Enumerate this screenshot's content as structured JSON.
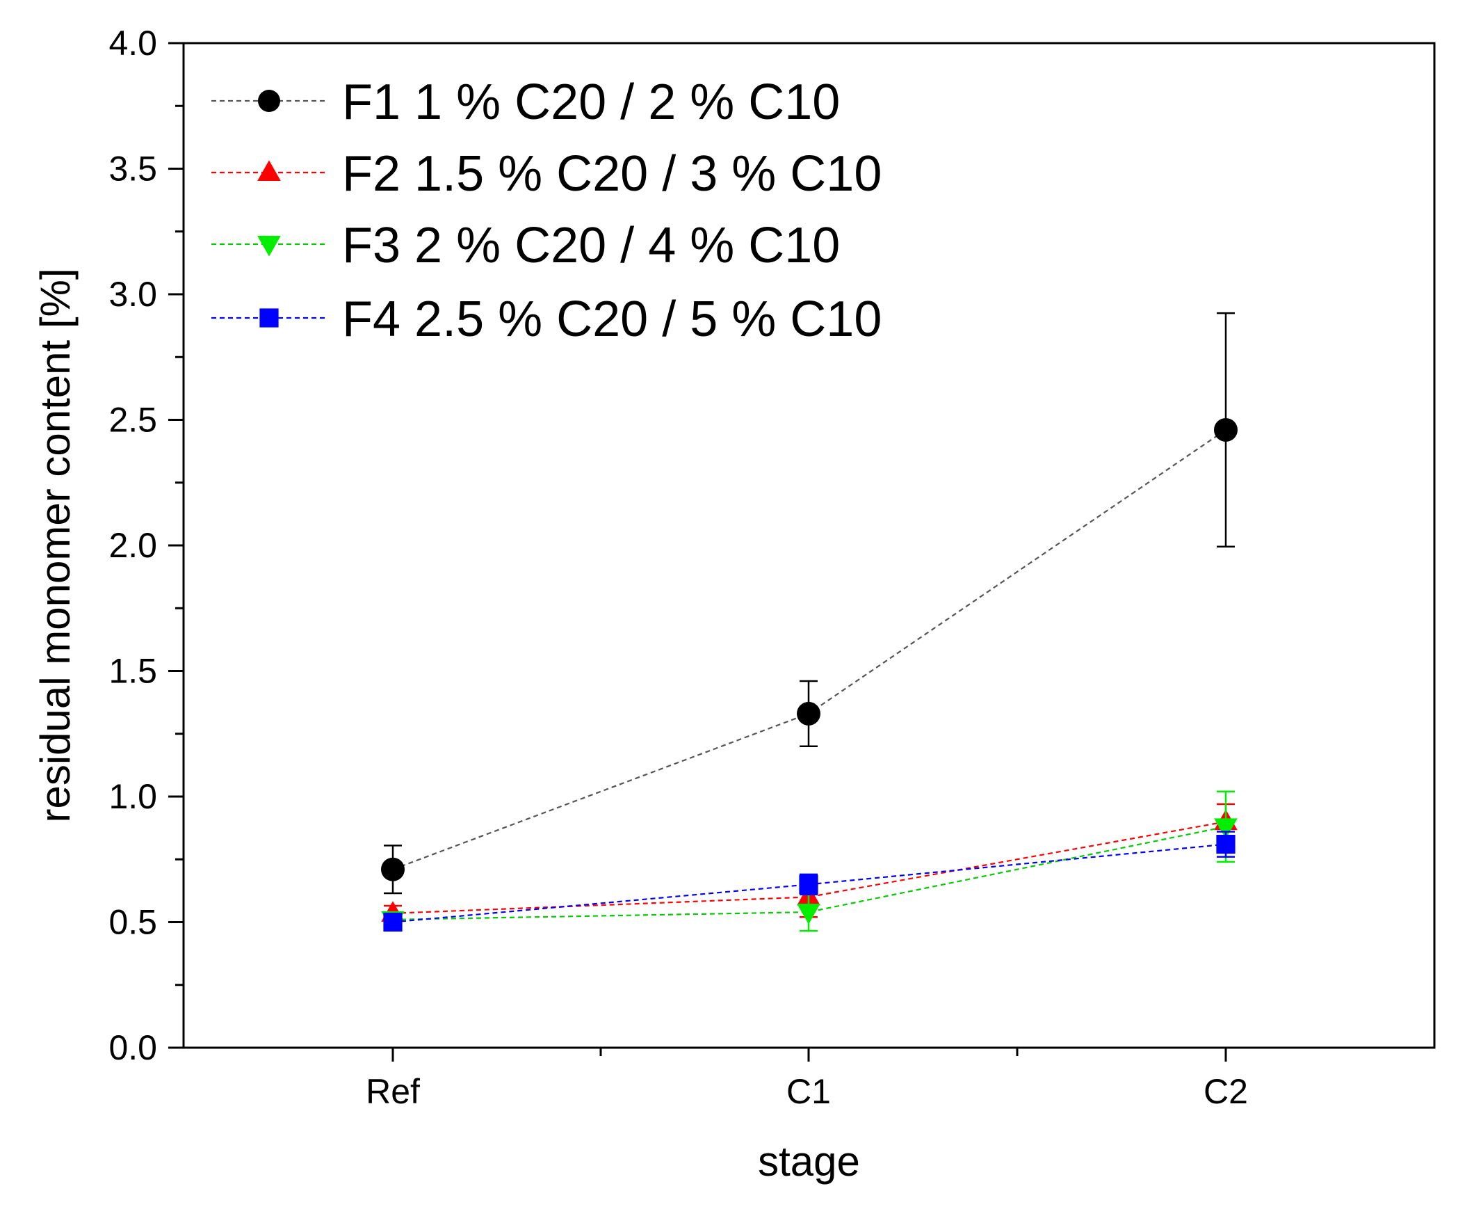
{
  "chart_data": {
    "type": "line",
    "title": "",
    "xlabel": "stage",
    "ylabel": "residual monomer content [%]",
    "categories": [
      "Ref",
      "C1",
      "C2"
    ],
    "ylim": [
      0.0,
      4.0
    ],
    "yticks": [
      "0.0",
      "0.5",
      "1.0",
      "1.5",
      "2.0",
      "2.5",
      "3.0",
      "3.5",
      "4.0"
    ],
    "grid": false,
    "legend_position": "top-left",
    "series": [
      {
        "name": "F1 1 % C20 / 2 % C10",
        "color": "#000000",
        "line_color": "#555555",
        "marker": "circle",
        "values": [
          0.71,
          1.33,
          2.46
        ],
        "errors": [
          0.095,
          0.13,
          0.465
        ]
      },
      {
        "name": "F2 1.5 % C20 / 3 % C10",
        "color": "#ff0000",
        "line_color": "#ff0000",
        "marker": "triangle-up",
        "values": [
          0.535,
          0.6,
          0.9
        ],
        "errors": [
          0.03,
          0.08,
          0.07
        ]
      },
      {
        "name": "F3 2 % C20 / 4 % C10",
        "color": "#00ee00",
        "line_color": "#00cc00",
        "marker": "triangle-down",
        "values": [
          0.51,
          0.54,
          0.88
        ],
        "errors": [
          0.02,
          0.075,
          0.14
        ]
      },
      {
        "name": "F4 2.5 % C20 / 5 % C10",
        "color": "#0000ff",
        "line_color": "#0000ff",
        "marker": "square",
        "values": [
          0.5,
          0.65,
          0.81
        ],
        "errors": [
          0.015,
          0.04,
          0.05
        ]
      }
    ]
  }
}
